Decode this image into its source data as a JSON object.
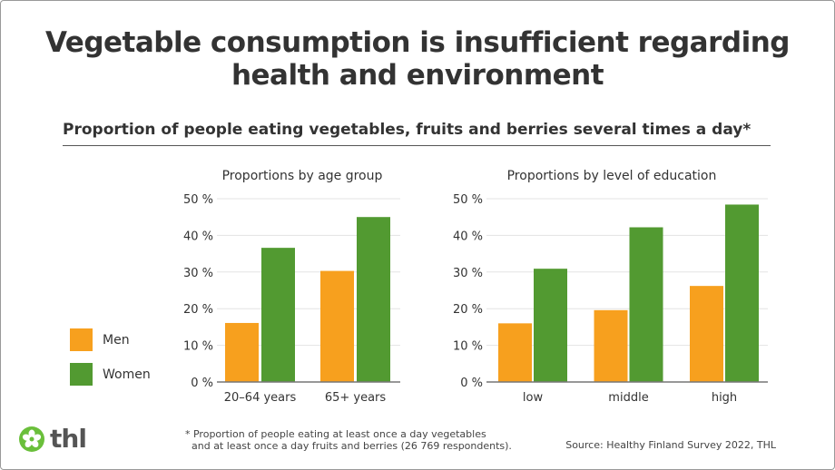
{
  "title": "Vegetable consumption is insufficient regarding health and environment",
  "subtitle": "Proportion of people eating vegetables, fruits and berries several times a day*",
  "legend": [
    {
      "label": "Men",
      "color": "#f7a01e"
    },
    {
      "label": "Women",
      "color": "#529a31"
    }
  ],
  "footnote": [
    "* Proportion of people eating at least once a day vegetables",
    "and at least once a day fruits and berries (26 769 respondents)."
  ],
  "source": "Source: Healthy Finland Survey 2022, THL",
  "logo": {
    "text": "thl",
    "color": "#6abf3b"
  },
  "chart_data": [
    {
      "type": "bar",
      "title": "Proportions by age group",
      "categories": [
        "20–64 years",
        "65+ years"
      ],
      "series": [
        {
          "name": "Men",
          "values": [
            16.1,
            30.3
          ]
        },
        {
          "name": "Women",
          "values": [
            36.6,
            45.0
          ]
        }
      ],
      "ylim": [
        0,
        50
      ],
      "yticks": [
        "0 %",
        "10 %",
        "20 %",
        "30 %",
        "40 %",
        "50 %"
      ],
      "grid": true
    },
    {
      "type": "bar",
      "title": "Proportions by level of education",
      "categories": [
        "low",
        "middle",
        "high"
      ],
      "series": [
        {
          "name": "Men",
          "values": [
            16.0,
            19.6,
            26.2
          ]
        },
        {
          "name": "Women",
          "values": [
            30.9,
            42.2,
            48.4
          ]
        }
      ],
      "ylim": [
        0,
        50
      ],
      "yticks": [
        "0 %",
        "10 %",
        "20 %",
        "30 %",
        "40 %",
        "50 %"
      ],
      "grid": true
    }
  ]
}
